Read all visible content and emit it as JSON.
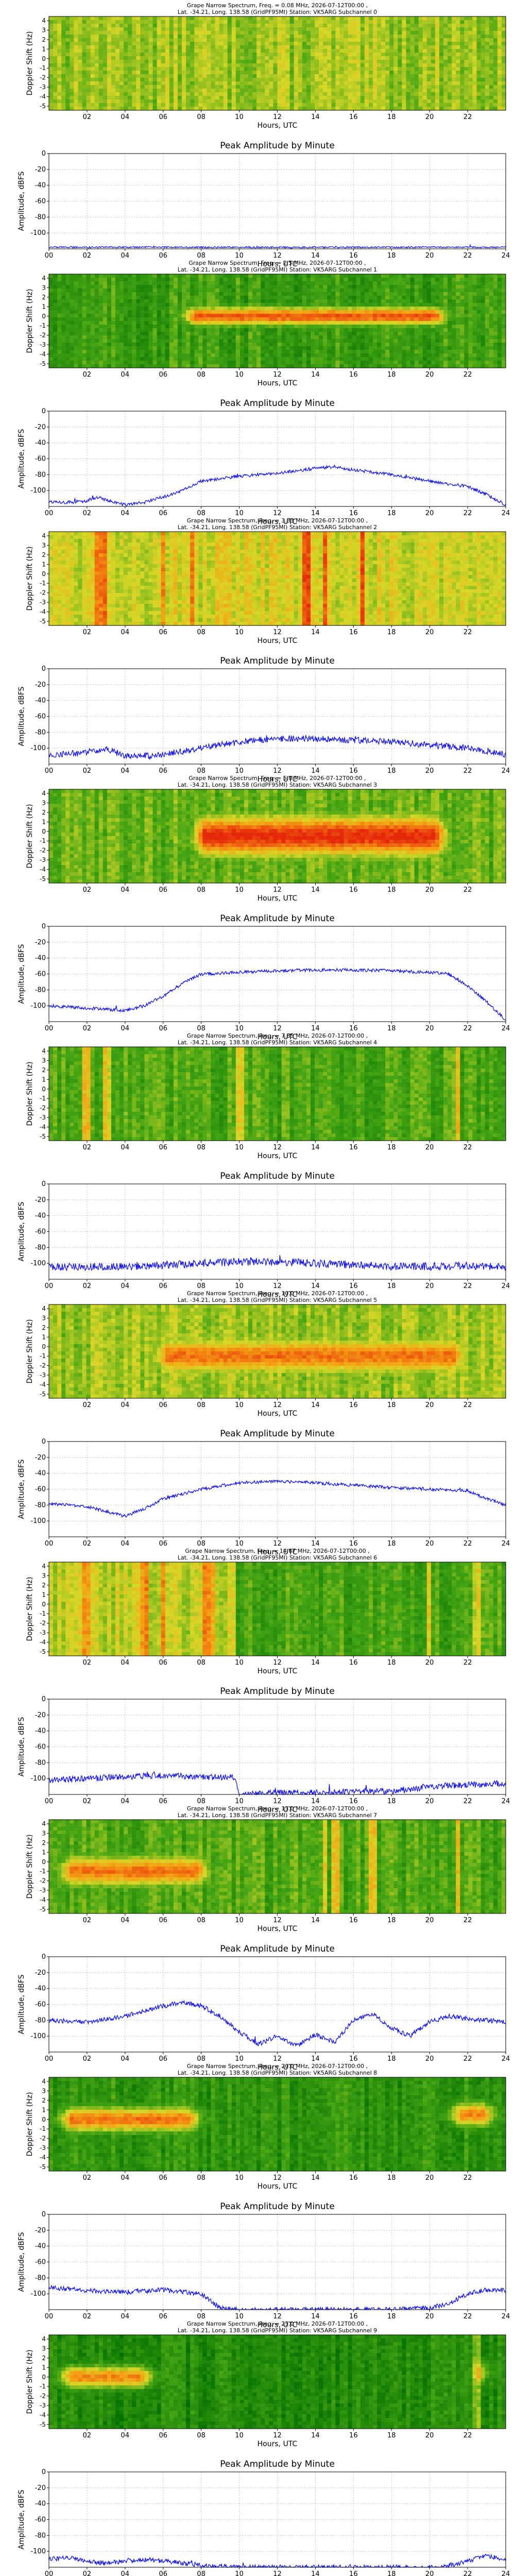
{
  "palette": {
    "line": "#0000ff",
    "grid": "#b0b0b0",
    "axis": "#000000"
  },
  "common": {
    "xlabel": "Hours, UTC",
    "spec_ylabel": "Doppler Shift (Hz)",
    "amp_ylabel": "Amplitude, dBFS",
    "amp_title": "Peak Amplitude by Minute",
    "spec_xticks": [
      "02",
      "04",
      "06",
      "08",
      "10",
      "12",
      "14",
      "16",
      "18",
      "20",
      "22"
    ],
    "amp_xticks": [
      "00",
      "02",
      "04",
      "06",
      "08",
      "10",
      "12",
      "14",
      "16",
      "18",
      "20",
      "22",
      "24"
    ],
    "spec_yticks": [
      "4",
      "3",
      "2",
      "1",
      "0",
      "-1",
      "-2",
      "-3",
      "-4",
      "-5"
    ]
  },
  "chart_data": [
    {
      "type": "heatmap",
      "channel": 0,
      "title": "Grape Narrow Spectrum, Freq. = 0.08 MHz, 2026-07-12T00:00 ,",
      "subtitle": "Lat. -34.21, Long. 138.58 (GridPF95MI) Station: VK5ARG Subchannel 0",
      "xlabel": "Hours, UTC",
      "ylabel": "Doppler Shift (Hz)",
      "xlim": [
        0,
        24
      ],
      "ylim": [
        -5,
        5
      ],
      "colormap": "green-yellow-red",
      "pattern": "uniform-noise",
      "intensity": 0.45,
      "bursts": []
    },
    {
      "type": "line",
      "channel": 0,
      "title": "Peak Amplitude by Minute",
      "xlabel": "Hours, UTC",
      "ylabel": "Amplitude, dBFS",
      "xlim": [
        0,
        24
      ],
      "ylim": [
        -120,
        0
      ],
      "yticks": [
        0,
        -20,
        -40,
        -60,
        -80,
        -100
      ],
      "x": [
        0,
        2,
        4,
        6,
        8,
        10,
        12,
        14,
        16,
        18,
        20,
        22,
        24
      ],
      "y": [
        -118,
        -118,
        -118,
        -118,
        -118,
        -118,
        -118,
        -118,
        -118,
        -118,
        -118,
        -118,
        -118
      ],
      "noise": 1
    },
    {
      "type": "heatmap",
      "channel": 1,
      "title": "Grape Narrow Spectrum, Freq. = 2.5 MHz, 2026-07-12T00:00 ,",
      "subtitle": "Lat. -34.21, Long. 138.58 (GridPF95MI) Station: VK5ARG Subchannel 1",
      "xlabel": "Hours, UTC",
      "ylabel": "Doppler Shift (Hz)",
      "xlim": [
        0,
        24
      ],
      "ylim": [
        -5,
        5
      ],
      "colormap": "green-yellow-red",
      "pattern": "band",
      "intensity": 0.25,
      "band": {
        "start": 6.5,
        "end": 21.5,
        "center": 0.5,
        "width": 1.5,
        "peak": 0.9
      }
    },
    {
      "type": "line",
      "channel": 1,
      "title": "Peak Amplitude by Minute",
      "xlabel": "Hours, UTC",
      "ylabel": "Amplitude, dBFS",
      "xlim": [
        0,
        24
      ],
      "ylim": [
        -120,
        0
      ],
      "yticks": [
        0,
        -20,
        -40,
        -60,
        -80,
        -100
      ],
      "x": [
        0,
        1,
        2,
        2.5,
        3,
        4,
        5,
        6,
        7,
        8,
        10,
        12,
        14,
        15,
        16,
        18,
        20,
        22,
        23,
        24
      ],
      "y": [
        -115,
        -115,
        -113,
        -108,
        -112,
        -118,
        -115,
        -108,
        -100,
        -88,
        -82,
        -78,
        -72,
        -70,
        -74,
        -80,
        -88,
        -95,
        -105,
        -118
      ],
      "noise": 2
    },
    {
      "type": "heatmap",
      "channel": 2,
      "title": "Grape Narrow Spectrum, Freq. = 3.33 MHz, 2026-07-12T00:00 ,",
      "subtitle": "Lat. -34.21, Long. 138.58 (GridPF95MI) Station: VK5ARG Subchannel 2",
      "xlabel": "Hours, UTC",
      "ylabel": "Doppler Shift (Hz)",
      "xlim": [
        0,
        24
      ],
      "ylim": [
        -5,
        5
      ],
      "colormap": "green-yellow-red",
      "pattern": "vertical-stripes",
      "intensity": 0.55,
      "bursts": [
        2.5,
        2.8,
        6,
        7.5,
        13.5,
        14.5,
        16.5
      ]
    },
    {
      "type": "line",
      "channel": 2,
      "title": "Peak Amplitude by Minute",
      "xlabel": "Hours, UTC",
      "ylabel": "Amplitude, dBFS",
      "xlim": [
        0,
        24
      ],
      "ylim": [
        -120,
        0
      ],
      "yticks": [
        0,
        -20,
        -40,
        -60,
        -80,
        -100
      ],
      "x": [
        0,
        2,
        3,
        4,
        6,
        8,
        10,
        12,
        14,
        16,
        18,
        20,
        22,
        24
      ],
      "y": [
        -108,
        -106,
        -100,
        -110,
        -108,
        -100,
        -92,
        -88,
        -88,
        -90,
        -92,
        -96,
        -100,
        -108
      ],
      "noise": 4
    },
    {
      "type": "heatmap",
      "channel": 3,
      "title": "Grape Narrow Spectrum, Freq. = 5.0 MHz, 2026-07-12T00:00 ,",
      "subtitle": "Lat. -34.21, Long. 138.58 (GridPF95MI) Station: VK5ARG Subchannel 3",
      "xlabel": "Hours, UTC",
      "ylabel": "Doppler Shift (Hz)",
      "xlim": [
        0,
        24
      ],
      "ylim": [
        -5,
        5
      ],
      "colormap": "green-yellow-red",
      "pattern": "band",
      "intensity": 0.35,
      "band": {
        "start": 7,
        "end": 21.5,
        "center": 0,
        "width": 3.5,
        "peak": 1.0
      }
    },
    {
      "type": "line",
      "channel": 3,
      "title": "Peak Amplitude by Minute",
      "xlabel": "Hours, UTC",
      "ylabel": "Amplitude, dBFS",
      "xlim": [
        0,
        24
      ],
      "ylim": [
        -120,
        0
      ],
      "yticks": [
        0,
        -20,
        -40,
        -60,
        -80,
        -100
      ],
      "x": [
        0,
        2,
        4,
        5,
        6,
        7,
        8,
        10,
        12,
        14,
        16,
        18,
        20,
        21,
        22,
        23,
        24
      ],
      "y": [
        -100,
        -103,
        -106,
        -100,
        -88,
        -72,
        -60,
        -58,
        -56,
        -55,
        -55,
        -56,
        -58,
        -60,
        -75,
        -95,
        -118
      ],
      "noise": 2
    },
    {
      "type": "heatmap",
      "channel": 4,
      "title": "Grape Narrow Spectrum, Freq. = 7.85 MHz, 2026-07-12T00:00 ,",
      "subtitle": "Lat. -34.21, Long. 138.58 (GridPF95MI) Station: VK5ARG Subchannel 4",
      "xlabel": "Hours, UTC",
      "ylabel": "Doppler Shift (Hz)",
      "xlim": [
        0,
        24
      ],
      "ylim": [
        -5,
        5
      ],
      "colormap": "green-yellow-red",
      "pattern": "vertical-stripes",
      "intensity": 0.3,
      "bursts": [
        2,
        3,
        10,
        21.5
      ]
    },
    {
      "type": "line",
      "channel": 4,
      "title": "Peak Amplitude by Minute",
      "xlabel": "Hours, UTC",
      "ylabel": "Amplitude, dBFS",
      "xlim": [
        0,
        24
      ],
      "ylim": [
        -120,
        0
      ],
      "yticks": [
        0,
        -20,
        -40,
        -60,
        -80,
        -100
      ],
      "x": [
        0,
        2,
        4,
        6,
        8,
        10,
        12,
        14,
        16,
        18,
        20,
        22,
        24
      ],
      "y": [
        -105,
        -104,
        -104,
        -102,
        -100,
        -98,
        -98,
        -100,
        -102,
        -104,
        -104,
        -103,
        -105
      ],
      "noise": 5
    },
    {
      "type": "heatmap",
      "channel": 5,
      "title": "Grape Narrow Spectrum, Freq. = 10.0 MHz, 2026-07-12T00:00 ,",
      "subtitle": "Lat. -34.21, Long. 138.58 (GridPF95MI) Station: VK5ARG Subchannel 5",
      "xlabel": "Hours, UTC",
      "ylabel": "Doppler Shift (Hz)",
      "xlim": [
        0,
        24
      ],
      "ylim": [
        -5,
        5
      ],
      "colormap": "green-yellow-red",
      "pattern": "band",
      "intensity": 0.45,
      "band": {
        "start": 5,
        "end": 22.5,
        "center": -0.5,
        "width": 3,
        "peak": 0.85
      }
    },
    {
      "type": "line",
      "channel": 5,
      "title": "Peak Amplitude by Minute",
      "xlabel": "Hours, UTC",
      "ylabel": "Amplitude, dBFS",
      "xlim": [
        0,
        24
      ],
      "ylim": [
        -120,
        0
      ],
      "yticks": [
        0,
        -20,
        -40,
        -60,
        -80,
        -100
      ],
      "x": [
        0,
        2,
        3,
        4,
        5,
        6,
        8,
        10,
        12,
        14,
        16,
        18,
        20,
        22,
        23,
        24
      ],
      "y": [
        -78,
        -82,
        -88,
        -94,
        -85,
        -72,
        -60,
        -52,
        -50,
        -52,
        -55,
        -58,
        -60,
        -62,
        -72,
        -80
      ],
      "noise": 2
    },
    {
      "type": "heatmap",
      "channel": 6,
      "title": "Grape Narrow Spectrum, Freq. = 14.67 MHz, 2026-07-12T00:00 ,",
      "subtitle": "Lat. -34.21, Long. 138.58 (GridPF95MI) Station: VK5ARG Subchannel 6",
      "xlabel": "Hours, UTC",
      "ylabel": "Doppler Shift (Hz)",
      "xlim": [
        0,
        24
      ],
      "ylim": [
        -5,
        5
      ],
      "colormap": "green-yellow-red",
      "pattern": "split",
      "intensity": 0.5,
      "split": 9.8,
      "bursts": [
        2,
        5,
        6,
        8.2,
        8.5,
        20,
        22.5
      ]
    },
    {
      "type": "line",
      "channel": 6,
      "title": "Peak Amplitude by Minute",
      "xlabel": "Hours, UTC",
      "ylabel": "Amplitude, dBFS",
      "xlim": [
        0,
        24
      ],
      "ylim": [
        -120,
        0
      ],
      "yticks": [
        0,
        -20,
        -40,
        -60,
        -80,
        -100
      ],
      "x": [
        0,
        2,
        4,
        6,
        8,
        9.8,
        10,
        12,
        14,
        16,
        18,
        20,
        22,
        24
      ],
      "y": [
        -102,
        -100,
        -98,
        -96,
        -98,
        -98,
        -120,
        -118,
        -118,
        -116,
        -116,
        -110,
        -108,
        -106
      ],
      "noise": 4
    },
    {
      "type": "heatmap",
      "channel": 7,
      "title": "Grape Narrow Spectrum, Freq. = 15.0 MHz, 2026-07-12T00:00 ,",
      "subtitle": "Lat. -34.21, Long. 138.58 (GridPF95MI) Station: VK5ARG Subchannel 7",
      "xlabel": "Hours, UTC",
      "ylabel": "Doppler Shift (Hz)",
      "xlim": [
        0,
        24
      ],
      "ylim": [
        -5,
        5
      ],
      "colormap": "green-yellow-red",
      "pattern": "band",
      "intensity": 0.3,
      "band": {
        "start": 0,
        "end": 9,
        "center": -0.5,
        "width": 2.5,
        "peak": 0.85
      },
      "bursts": [
        14.5,
        15,
        17,
        21.5
      ]
    },
    {
      "type": "line",
      "channel": 7,
      "title": "Peak Amplitude by Minute",
      "xlabel": "Hours, UTC",
      "ylabel": "Amplitude, dBFS",
      "xlim": [
        0,
        24
      ],
      "ylim": [
        -120,
        0
      ],
      "yticks": [
        0,
        -20,
        -40,
        -60,
        -80,
        -100
      ],
      "x": [
        0,
        2,
        4,
        6,
        7,
        8,
        9,
        10,
        11,
        12,
        13,
        14,
        15,
        16,
        17,
        18,
        19,
        20,
        21,
        22,
        24
      ],
      "y": [
        -80,
        -82,
        -75,
        -62,
        -58,
        -62,
        -75,
        -95,
        -110,
        -100,
        -112,
        -98,
        -108,
        -80,
        -72,
        -90,
        -100,
        -82,
        -75,
        -78,
        -82
      ],
      "noise": 3
    },
    {
      "type": "heatmap",
      "channel": 8,
      "title": "Grape Narrow Spectrum, Freq. = 20.0 MHz, 2026-07-12T00:00 ,",
      "subtitle": "Lat. -34.21, Long. 138.58 (GridPF95MI) Station: VK5ARG Subchannel 8",
      "xlabel": "Hours, UTC",
      "ylabel": "Doppler Shift (Hz)",
      "xlim": [
        0,
        24
      ],
      "ylim": [
        -5,
        5
      ],
      "colormap": "green-yellow-red",
      "pattern": "two-bands",
      "intensity": 0.2,
      "band": {
        "start": 0,
        "end": 8.5,
        "center": 0.5,
        "width": 2,
        "peak": 0.85
      },
      "band2": {
        "start": 20.5,
        "end": 24,
        "center": 1,
        "width": 2,
        "peak": 0.8
      }
    },
    {
      "type": "line",
      "channel": 8,
      "title": "Peak Amplitude by Minute",
      "xlabel": "Hours, UTC",
      "ylabel": "Amplitude, dBFS",
      "xlim": [
        0,
        24
      ],
      "ylim": [
        -120,
        0
      ],
      "yticks": [
        0,
        -20,
        -40,
        -60,
        -80,
        -100
      ],
      "x": [
        0,
        2,
        4,
        6,
        8,
        9,
        10,
        12,
        14,
        16,
        18,
        20,
        21,
        22,
        23,
        24
      ],
      "y": [
        -92,
        -96,
        -98,
        -95,
        -100,
        -118,
        -120,
        -120,
        -120,
        -120,
        -120,
        -118,
        -112,
        -100,
        -95,
        -96
      ],
      "noise": 3
    },
    {
      "type": "heatmap",
      "channel": 9,
      "title": "Grape Narrow Spectrum, Freq. = 25.0 MHz, 2026-07-12T00:00 ,",
      "subtitle": "Lat. -34.21, Long. 138.58 (GridPF95MI) Station: VK5ARG Subchannel 9",
      "xlabel": "Hours, UTC",
      "ylabel": "Doppler Shift (Hz)",
      "xlim": [
        0,
        24
      ],
      "ylim": [
        -5,
        5
      ],
      "colormap": "green-yellow-red",
      "pattern": "two-bands",
      "intensity": 0.15,
      "band": {
        "start": 0,
        "end": 6,
        "center": 0.5,
        "width": 1.8,
        "peak": 0.8
      },
      "band2": {
        "start": 22,
        "end": 23.5,
        "center": 1,
        "width": 1.8,
        "peak": 0.85
      },
      "bursts": [
        22.5
      ]
    },
    {
      "type": "line",
      "channel": 9,
      "title": "Peak Amplitude by Minute",
      "xlabel": "Hours, UTC",
      "ylabel": "Amplitude, dBFS",
      "xlim": [
        0,
        24
      ],
      "ylim": [
        -120,
        0
      ],
      "yticks": [
        0,
        -20,
        -40,
        -60,
        -80,
        -100
      ],
      "x": [
        0,
        1,
        2,
        3,
        4,
        5,
        6,
        7,
        8,
        10,
        12,
        14,
        16,
        18,
        20,
        21,
        22,
        23,
        24
      ],
      "y": [
        -110,
        -108,
        -112,
        -115,
        -112,
        -110,
        -112,
        -115,
        -118,
        -120,
        -120,
        -120,
        -120,
        -120,
        -120,
        -118,
        -112,
        -106,
        -110
      ],
      "noise": 3
    }
  ]
}
